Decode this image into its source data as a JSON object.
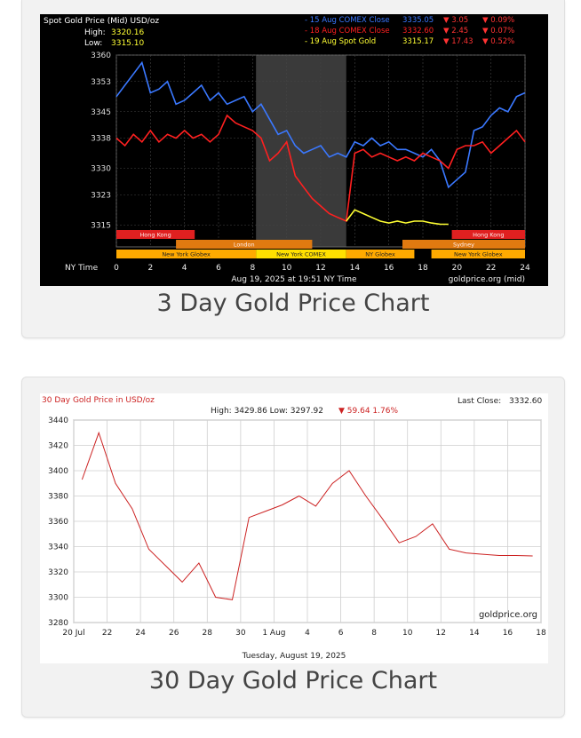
{
  "card1": {
    "caption": "3 Day Gold Price Chart",
    "chart_data": {
      "type": "line",
      "title": "Spot Gold Price (Mid) USD/oz",
      "high_label": "High:",
      "high_value": "3320.16",
      "low_label": "Low:",
      "low_value": "3315.10",
      "ylim": [
        3312,
        3360
      ],
      "y_ticks": [
        "3360",
        "3353",
        "3345",
        "3338",
        "3330",
        "3323",
        "3315"
      ],
      "y_tick_values": [
        3360,
        3353,
        3345,
        3338,
        3330,
        3323,
        3315
      ],
      "x_axis_label": "NY Time",
      "x_ticks": [
        "0",
        "2",
        "4",
        "6",
        "8",
        "10",
        "12",
        "14",
        "16",
        "18",
        "20",
        "22",
        "24"
      ],
      "xlim": [
        0,
        24
      ],
      "shade": [
        8.2,
        13.5
      ],
      "footer_left": "Aug 19, 2025 at 19:51 NY Time",
      "footer_right": "goldprice.org (mid)",
      "legend": [
        {
          "name": "- 15 Aug COMEX Close",
          "value": "3335.05",
          "change": "▼ 3.05",
          "pct": "▼ 0.09%",
          "color": "#3a78ff"
        },
        {
          "name": "- 18 Aug COMEX Close",
          "value": "3332.60",
          "change": "▼ 2.45",
          "pct": "▼ 0.07%",
          "color": "#ff2020"
        },
        {
          "name": "- 19 Aug Spot Gold",
          "value": "3315.17",
          "change": "▼ 17.43",
          "pct": "▼ 0.52%",
          "color": "#ffff33"
        }
      ],
      "sessions": [
        {
          "name": "Hong Kong",
          "color": "#e02020",
          "rows": [
            [
              0,
              4.6
            ],
            [
              19.7,
              24
            ]
          ]
        },
        {
          "name": "London",
          "color": "#e07a10",
          "rows": [
            [
              3.5,
              11.5
            ]
          ]
        },
        {
          "name": "Sydney",
          "color": "#e07a10",
          "rows": [
            [
              16.8,
              24
            ]
          ]
        },
        {
          "name": "New York Globex",
          "color": "#ffaa00",
          "rows": [
            [
              0,
              8.2
            ]
          ]
        },
        {
          "name": "New York COMEX",
          "color": "#ffe000",
          "rows": [
            [
              8.2,
              13.5
            ]
          ]
        },
        {
          "name": "NY Globex",
          "color": "#ffaa00",
          "rows": [
            [
              13.5,
              17.5
            ]
          ]
        },
        {
          "name": "New York Globex",
          "color": "#ffaa00",
          "rows": [
            [
              18.5,
              24
            ]
          ]
        }
      ],
      "series": [
        {
          "name": "- 15 Aug COMEX Close",
          "color": "#3a78ff",
          "x": [
            0,
            0.5,
            1,
            1.5,
            2,
            2.5,
            3,
            3.5,
            4,
            4.5,
            5,
            5.5,
            6,
            6.5,
            7,
            7.5,
            8,
            8.5,
            9,
            9.5,
            10,
            10.5,
            11,
            11.5,
            12,
            12.5,
            13,
            13.5,
            14,
            14.5,
            15,
            15.5,
            16,
            16.5,
            17,
            17.5,
            18,
            18.5,
            19,
            19.5,
            20,
            20.5,
            21,
            21.5,
            22,
            22.5,
            23,
            23.5,
            24
          ],
          "y": [
            3349,
            3352,
            3355,
            3358,
            3350,
            3351,
            3353,
            3347,
            3348,
            3350,
            3352,
            3348,
            3350,
            3347,
            3348,
            3349,
            3345,
            3347,
            3343,
            3339,
            3340,
            3336,
            3334,
            3335,
            3336,
            3333,
            3334,
            3333,
            3337,
            3336,
            3338,
            3336,
            3337,
            3335,
            3335,
            3334,
            3333,
            3335,
            3332,
            3325,
            3327,
            3329,
            3340,
            3341,
            3344,
            3346,
            3345,
            3349,
            3350
          ]
        },
        {
          "name": "- 18 Aug COMEX Close",
          "color": "#ff2020",
          "x": [
            0,
            0.5,
            1,
            1.5,
            2,
            2.5,
            3,
            3.5,
            4,
            4.5,
            5,
            5.5,
            6,
            6.5,
            7,
            7.5,
            8,
            8.5,
            9,
            9.5,
            10,
            10.5,
            11,
            11.5,
            12,
            12.5,
            13,
            13.5,
            14,
            14.5,
            15,
            15.5,
            16,
            16.5,
            17,
            17.5,
            18,
            18.5,
            19,
            19.5,
            20,
            20.5,
            21,
            21.5,
            22,
            22.5,
            23,
            23.5,
            24
          ],
          "y": [
            3338,
            3336,
            3339,
            3337,
            3340,
            3337,
            3339,
            3338,
            3340,
            3338,
            3339,
            3337,
            3339,
            3344,
            3342,
            3341,
            3340,
            3338,
            3332,
            3334,
            3337,
            3328,
            3325,
            3322,
            3320,
            3318,
            3317,
            3316,
            3334,
            3335,
            3333,
            3334,
            3333,
            3332,
            3333,
            3332,
            3334,
            3333,
            3332,
            3330,
            3335,
            3336,
            3336,
            3337,
            3334,
            3336,
            3338,
            3340,
            3337
          ]
        },
        {
          "name": "- 19 Aug Spot Gold",
          "color": "#ffff33",
          "x": [
            13.5,
            14,
            14.5,
            15,
            15.5,
            16,
            16.5,
            17,
            17.5,
            18,
            18.5,
            19,
            19.5
          ],
          "y": [
            3316,
            3319,
            3318,
            3317,
            3316,
            3315.5,
            3316,
            3315.5,
            3316,
            3316,
            3315.5,
            3315.2,
            3315.17
          ]
        }
      ]
    }
  },
  "card2": {
    "caption": "30 Day Gold Price Chart",
    "chart_data": {
      "type": "line",
      "title": "30 Day Gold Price in USD/oz",
      "last_close_label": "Last Close:",
      "last_close_value": "3332.60",
      "stats_text": "High: 3429.86 Low: 3297.92",
      "change_text": "▼ 59.64 1.76%",
      "ylim": [
        3280,
        3440
      ],
      "y_ticks": [
        "3440",
        "3420",
        "3400",
        "3380",
        "3360",
        "3340",
        "3320",
        "3300",
        "3280"
      ],
      "y_tick_values": [
        3440,
        3420,
        3400,
        3380,
        3360,
        3340,
        3320,
        3300,
        3280
      ],
      "x_ticks": [
        "20 Jul",
        "22",
        "24",
        "26",
        "28",
        "30",
        "1 Aug",
        "4",
        "6",
        "8",
        "10",
        "12",
        "14",
        "16",
        "18"
      ],
      "x_tick_values": [
        0,
        2,
        4,
        6,
        8,
        10,
        12,
        14,
        16,
        18,
        20,
        22,
        24,
        26,
        28
      ],
      "xlim": [
        0,
        28
      ],
      "watermark": "goldprice.org",
      "footer": "Tuesday, August 19, 2025",
      "series": [
        {
          "color": "#cc2222",
          "x": [
            0.5,
            1.5,
            2.5,
            3.5,
            4.5,
            5.5,
            6.5,
            7.5,
            8.5,
            9.5,
            10.5,
            11.5,
            12.5,
            13.5,
            14.5,
            15.5,
            16.5,
            17.5,
            18.5,
            19.5,
            20.5,
            21.5,
            22.5,
            23.5,
            24.5,
            25.5,
            26.5,
            27.5
          ],
          "y": [
            3393,
            3430,
            3390,
            3370,
            3338,
            3325,
            3312,
            3327,
            3300,
            3298,
            3363,
            3368,
            3373,
            3380,
            3372,
            3390,
            3400,
            3380,
            3362,
            3343,
            3348,
            3358,
            3338,
            3335,
            3334,
            3333,
            3333,
            3332.6
          ]
        }
      ]
    }
  }
}
